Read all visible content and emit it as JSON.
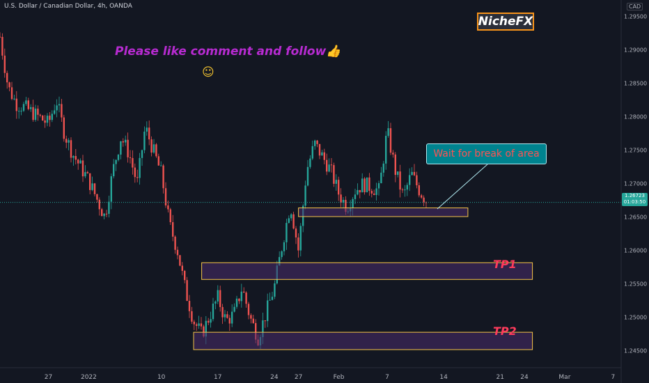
{
  "header": {
    "symbol_title": "U.S. Dollar / Canadian Dollar, 4h, OANDA",
    "currency": "CAD"
  },
  "annotations": {
    "brand": "NicheFX",
    "like_text": "Please like comment and follow",
    "thumbs_emoji": "👍",
    "smile_emoji": "☺",
    "callout": "Wait for break of area",
    "tp1": "TP1",
    "tp2": "TP2"
  },
  "current_price": {
    "price": "1.26723",
    "countdown": "01:03:50"
  },
  "colors": {
    "background": "#131722",
    "up": "#26a69a",
    "down": "#ef5350",
    "zone_fill": "#4a2c6b",
    "zone_border": "#f7c548",
    "brand_border": "#f7931a",
    "callout_bg": "#00838f",
    "tp_text": "#ff3b5c"
  },
  "chart_data": {
    "type": "candlestick",
    "title": "U.S. Dollar / Canadian Dollar, 4h, OANDA",
    "y_range": [
      1.2425,
      1.2975
    ],
    "y_ticks": [
      "1.29500",
      "1.29000",
      "1.28500",
      "1.28000",
      "1.27500",
      "1.27000",
      "1.26500",
      "1.26000",
      "1.25500",
      "1.25000",
      "1.24500"
    ],
    "x_ticks": [
      "27",
      "2022",
      "10",
      "17",
      "24",
      "27",
      "Feb",
      "7",
      "14",
      "21",
      "24",
      "Mar",
      "7"
    ],
    "path_points": [
      [
        "2021-12-21",
        1.292
      ],
      [
        "2021-12-22",
        1.2845
      ],
      [
        "2021-12-23",
        1.282
      ],
      [
        "2021-12-24",
        1.2815
      ],
      [
        "2021-12-27",
        1.279
      ],
      [
        "2021-12-28",
        1.2825
      ],
      [
        "2021-12-29",
        1.2775
      ],
      [
        "2021-12-30",
        1.2745
      ],
      [
        "2022-01-01",
        1.2705
      ],
      [
        "2022-01-03",
        1.265
      ],
      [
        "2022-01-04",
        1.272
      ],
      [
        "2022-01-05",
        1.277
      ],
      [
        "2022-01-06",
        1.2745
      ],
      [
        "2022-01-07",
        1.27
      ],
      [
        "2022-01-08",
        1.2785
      ],
      [
        "2022-01-10",
        1.2715
      ],
      [
        "2022-01-11",
        1.264
      ],
      [
        "2022-01-12",
        1.26
      ],
      [
        "2022-01-13",
        1.254
      ],
      [
        "2022-01-14",
        1.2495
      ],
      [
        "2022-01-15",
        1.2475
      ],
      [
        "2022-01-17",
        1.253
      ],
      [
        "2022-01-18",
        1.2495
      ],
      [
        "2022-01-19",
        1.2505
      ],
      [
        "2022-01-20",
        1.2545
      ],
      [
        "2022-01-21",
        1.25
      ],
      [
        "2022-01-22",
        1.247
      ],
      [
        "2022-01-24",
        1.2545
      ],
      [
        "2022-01-25",
        1.261
      ],
      [
        "2022-01-26",
        1.267
      ],
      [
        "2022-01-27",
        1.26
      ],
      [
        "2022-01-28",
        1.272
      ],
      [
        "2022-01-29",
        1.276
      ],
      [
        "2022-01-31",
        1.272
      ],
      [
        "2022-02-01",
        1.2685
      ],
      [
        "2022-02-02",
        1.2665
      ],
      [
        "2022-02-03",
        1.269
      ],
      [
        "2022-02-04",
        1.27
      ],
      [
        "2022-02-06",
        1.269
      ],
      [
        "2022-02-07",
        1.278
      ],
      [
        "2022-02-08",
        1.272
      ],
      [
        "2022-02-09",
        1.268
      ],
      [
        "2022-02-10",
        1.2715
      ],
      [
        "2022-02-11",
        1.269
      ],
      [
        "2022-02-12",
        1.2672
      ]
    ],
    "current_price": 1.26723,
    "zones": [
      {
        "label": "",
        "start": "2022-01-27",
        "end": "2022-02-17",
        "high": 1.2664,
        "low": 1.2651
      },
      {
        "label": "TP1",
        "start": "2022-01-15",
        "end": "2022-02-25",
        "high": 1.2582,
        "low": 1.2557
      },
      {
        "label": "TP2",
        "start": "2022-01-14",
        "end": "2022-02-25",
        "high": 1.2478,
        "low": 1.2452
      }
    ],
    "grid": false,
    "legend": "none"
  }
}
